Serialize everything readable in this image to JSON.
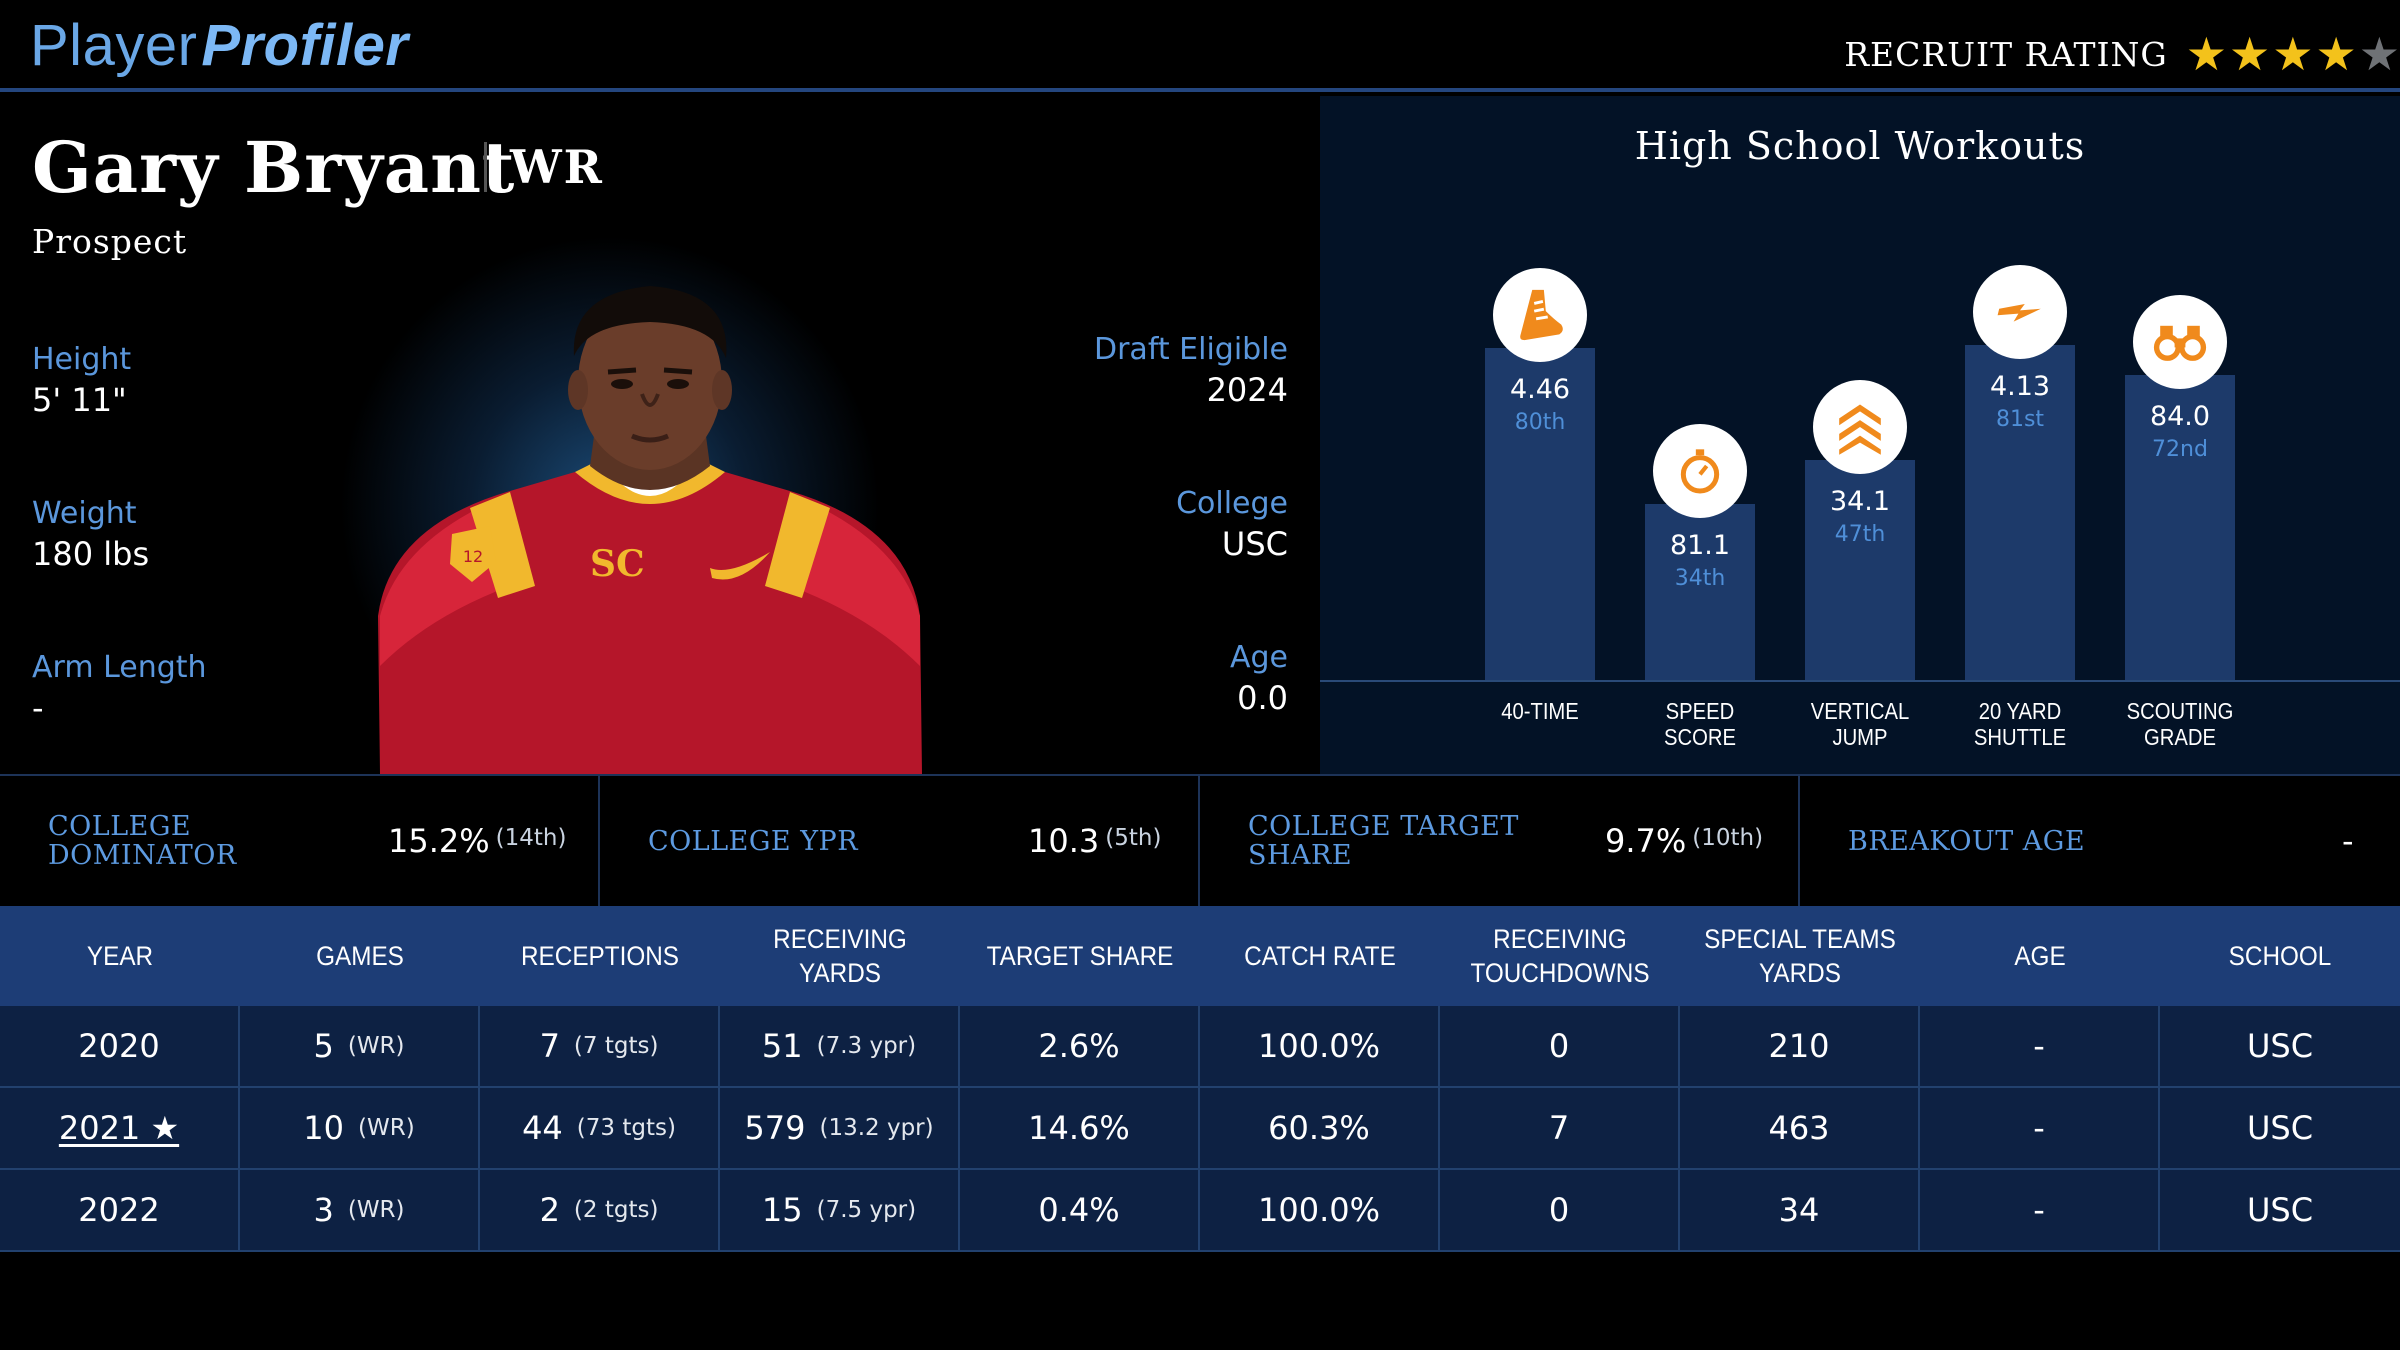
{
  "header": {
    "logo_player": "Player",
    "logo_profiler": "Profiler",
    "recruit_label": "RECRUIT RATING",
    "recruit_stars": 4,
    "recruit_stars_max": 5
  },
  "player": {
    "name": "Gary Bryant",
    "position": "WR",
    "status": "Prospect",
    "height_label": "Height",
    "height": "5' 11\"",
    "weight_label": "Weight",
    "weight": "180 lbs",
    "arm_label": "Arm Length",
    "arm": "-",
    "draft_label": "Draft Eligible",
    "draft": "2024",
    "college_label": "College",
    "college": "USC",
    "age_label": "Age",
    "age": "0.0"
  },
  "workouts": {
    "title": "High School Workouts",
    "items": [
      {
        "label_1": "40-TIME",
        "label_2": "",
        "value": "4.46",
        "percentile": "80th",
        "pct_num": 80,
        "icon": "shoe-icon"
      },
      {
        "label_1": "SPEED",
        "label_2": "SCORE",
        "value": "81.1",
        "percentile": "34th",
        "pct_num": 34,
        "icon": "stopwatch-icon"
      },
      {
        "label_1": "VERTICAL",
        "label_2": "JUMP",
        "value": "34.1",
        "percentile": "47th",
        "pct_num": 47,
        "icon": "chevrons-up-icon"
      },
      {
        "label_1": "20 YARD",
        "label_2": "SHUTTLE",
        "value": "4.13",
        "percentile": "81st",
        "pct_num": 81,
        "icon": "lightning-icon"
      },
      {
        "label_1": "SCOUTING",
        "label_2": "GRADE",
        "value": "84.0",
        "percentile": "72nd",
        "pct_num": 72,
        "icon": "binoculars-icon"
      }
    ]
  },
  "metrics": [
    {
      "label": "COLLEGE DOMINATOR",
      "value": "15.2%",
      "rank": "(14th)"
    },
    {
      "label": "COLLEGE YPR",
      "value": "10.3",
      "rank": "(5th)"
    },
    {
      "label": "COLLEGE TARGET SHARE",
      "value": "9.7%",
      "rank": "(10th)"
    },
    {
      "label": "BREAKOUT AGE",
      "value": "-",
      "rank": ""
    }
  ],
  "table": {
    "headers": [
      {
        "l1": "YEAR",
        "l2": ""
      },
      {
        "l1": "GAMES",
        "l2": ""
      },
      {
        "l1": "RECEPTIONS",
        "l2": ""
      },
      {
        "l1": "RECEIVING YARDS",
        "l2": ""
      },
      {
        "l1": "TARGET SHARE",
        "l2": ""
      },
      {
        "l1": "CATCH RATE",
        "l2": ""
      },
      {
        "l1": "RECEIVING",
        "l2": "TOUCHDOWNS"
      },
      {
        "l1": "SPECIAL TEAMS",
        "l2": "YARDS"
      },
      {
        "l1": "AGE",
        "l2": ""
      },
      {
        "l1": "SCHOOL",
        "l2": ""
      }
    ],
    "rows": [
      {
        "year": "2020",
        "year_link": false,
        "games": "5",
        "games_sub": "(WR)",
        "rec": "7",
        "rec_sub": "(7 tgts)",
        "yds": "51",
        "yds_sub": "(7.3 ypr)",
        "tshare": "2.6%",
        "catch": "100.0%",
        "td": "0",
        "st": "210",
        "age": "-",
        "school": "USC"
      },
      {
        "year": "2021 ★",
        "year_link": true,
        "games": "10",
        "games_sub": "(WR)",
        "rec": "44",
        "rec_sub": "(73 tgts)",
        "yds": "579",
        "yds_sub": "(13.2 ypr)",
        "tshare": "14.6%",
        "catch": "60.3%",
        "td": "7",
        "st": "463",
        "age": "-",
        "school": "USC"
      },
      {
        "year": "2022",
        "year_link": false,
        "games": "3",
        "games_sub": "(WR)",
        "rec": "2",
        "rec_sub": "(2 tgts)",
        "yds": "15",
        "yds_sub": "(7.5 ypr)",
        "tshare": "0.4%",
        "catch": "100.0%",
        "td": "0",
        "st": "34",
        "age": "-",
        "school": "USC"
      }
    ]
  }
}
